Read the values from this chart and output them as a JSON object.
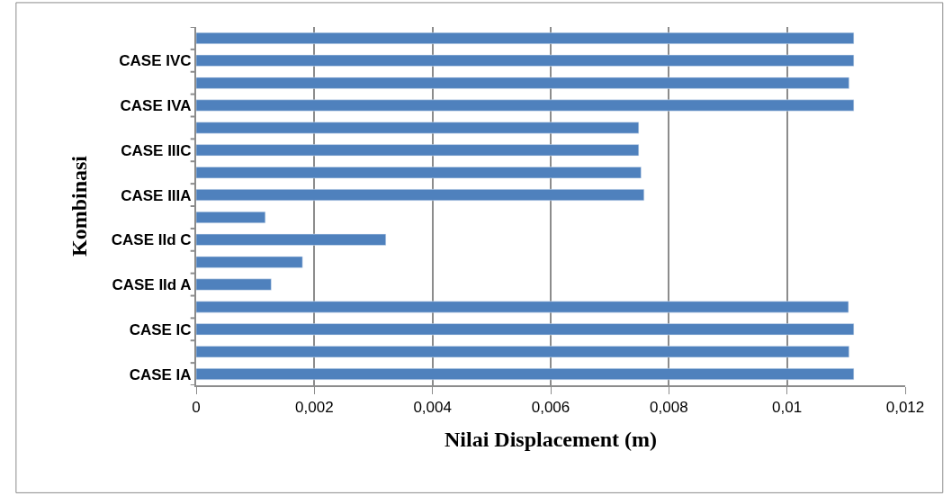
{
  "chart_data": {
    "type": "bar",
    "orientation": "horizontal",
    "xlabel": "Nilai Displacement (m)",
    "ylabel": "Kombinasi",
    "categories": [
      null,
      "CASE IVC",
      null,
      "CASE IVA",
      null,
      "CASE IIIC",
      null,
      "CASE IIIA",
      null,
      "CASE IId C",
      null,
      "CASE IId A",
      null,
      "CASE IC",
      null,
      "CASE IA"
    ],
    "values": [
      0.01113,
      0.01113,
      0.01105,
      0.01113,
      0.00749,
      0.00749,
      0.00753,
      0.00758,
      0.00117,
      0.00321,
      0.0018,
      0.00127,
      0.01104,
      0.01113,
      0.01105,
      0.01113
    ],
    "color": "#4f81bd",
    "xlim": [
      0,
      0.012
    ],
    "xticks": [
      0,
      {
        "value": 0.002,
        "label": "0,002"
      },
      {
        "value": 0.004,
        "label": "0,004"
      },
      {
        "value": 0.006,
        "label": "0,006"
      },
      {
        "value": 0.008,
        "label": "0,008"
      },
      {
        "value": 0.01,
        "label": "0,01"
      },
      {
        "value": 0.012,
        "label": "0,012"
      }
    ],
    "grid": "x"
  }
}
